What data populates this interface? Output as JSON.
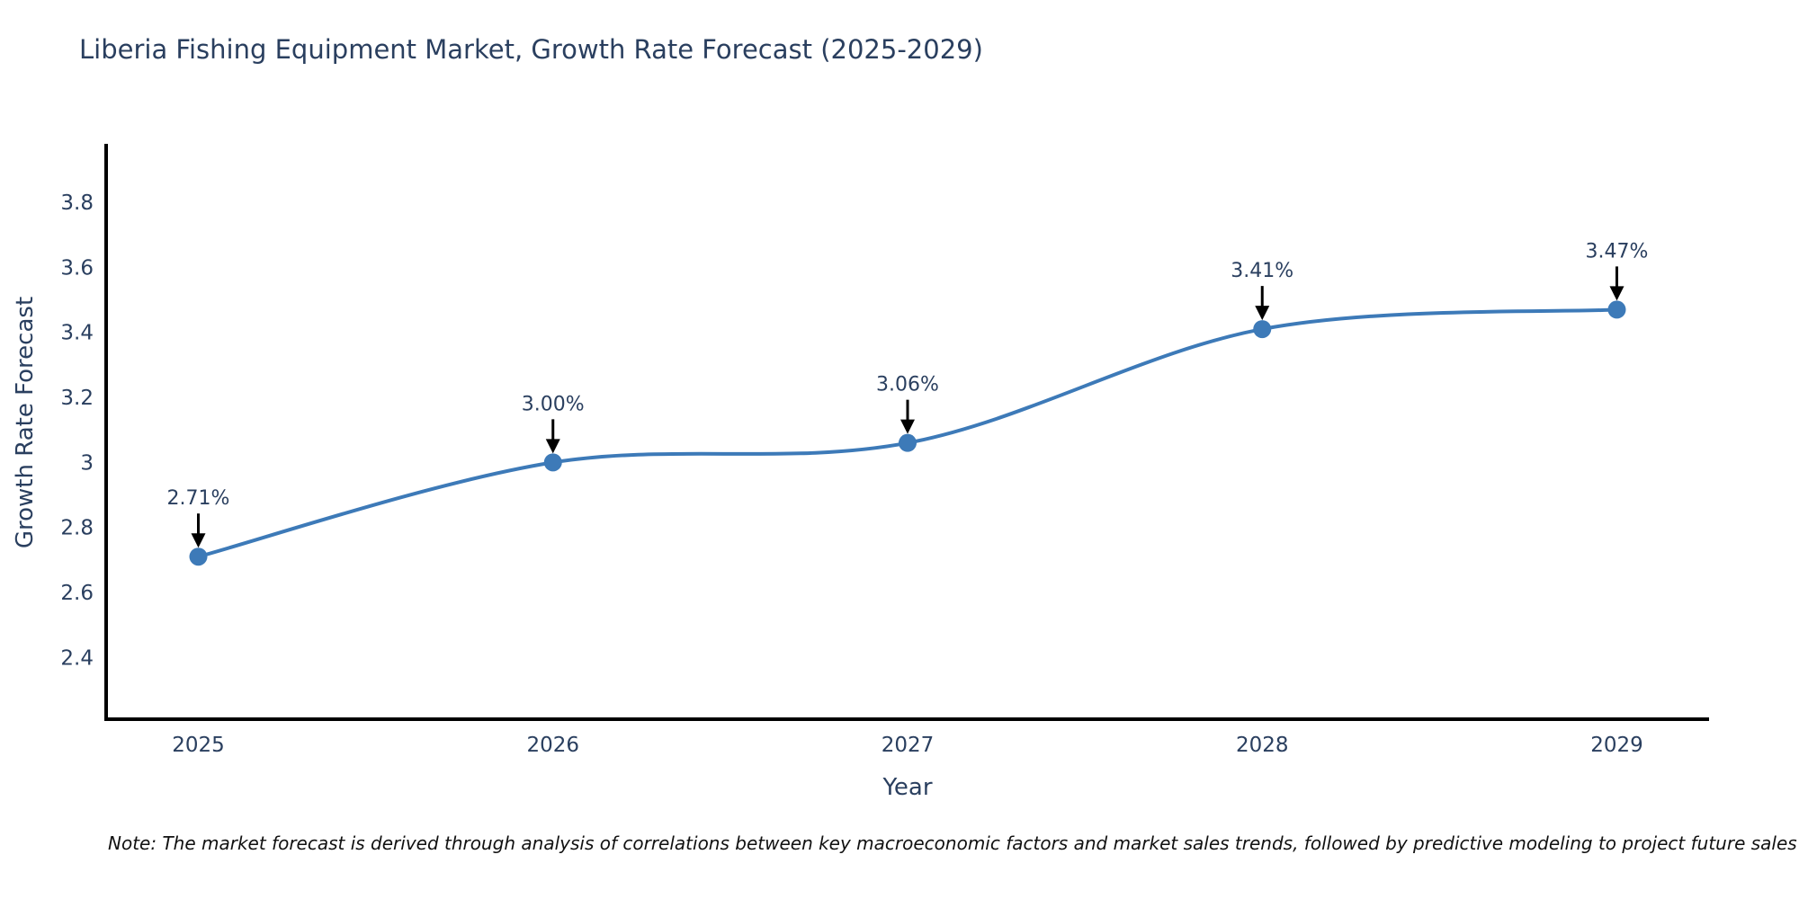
{
  "page": {
    "title": "Liberia Fishing Equipment Market, Growth Rate Forecast (2025-2029)",
    "note": "Note: The market forecast is derived through analysis of correlations between key macroeconomic factors and market sales trends, followed by predictive modeling to project future sales"
  },
  "chart_data": {
    "type": "line",
    "title": "Liberia Fishing Equipment Market, Growth Rate Forecast (2025-2029)",
    "line_shape": "spline",
    "x": [
      2025,
      2026,
      2027,
      2028,
      2029
    ],
    "series": [
      {
        "name": "Growth Rate Forecast",
        "values": [
          2.71,
          3.0,
          3.06,
          3.41,
          3.47
        ]
      }
    ],
    "point_labels": [
      "2.71%",
      "3.00%",
      "3.06%",
      "3.41%",
      "3.47%"
    ],
    "xlabel": "Year",
    "ylabel": "Growth Rate Forecast",
    "xticks": [
      2025,
      2026,
      2027,
      2028,
      2029
    ],
    "yticks": [
      2.4,
      2.6,
      2.8,
      3,
      3.2,
      3.4,
      3.6,
      3.8
    ],
    "xlim": [
      2024.74,
      2029.26
    ],
    "ylim": [
      2.21,
      3.98
    ],
    "grid": false,
    "legend": "none",
    "colors": {
      "line": "#3d7ab8",
      "marker": "#3d7ab8",
      "axis": "#000000",
      "text": "#2a3f5f",
      "annotation_text": "#2a3f5f",
      "annotation_arrow": "#000000",
      "background": "#ffffff"
    }
  }
}
